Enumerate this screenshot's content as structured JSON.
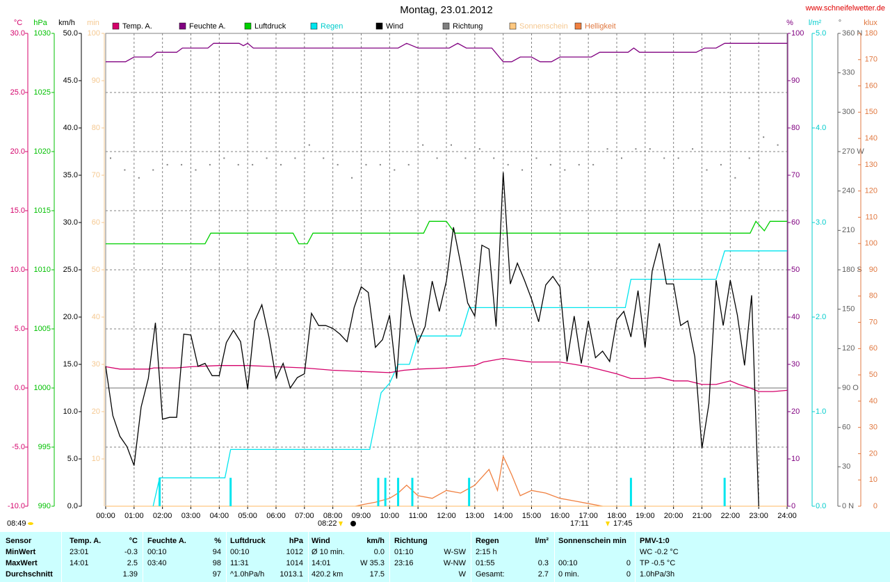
{
  "chart_data": {
    "type": "line",
    "title": "Montag, 23.01.2012",
    "subtitle": "www.schneifelwetter.de",
    "xlim": [
      0,
      24
    ],
    "xticks": [
      {
        "value": 0,
        "label": "00:00"
      },
      {
        "value": 1,
        "label": "01:00"
      },
      {
        "value": 2,
        "label": "02:00"
      },
      {
        "value": 3,
        "label": "03:00"
      },
      {
        "value": 4,
        "label": "04:00"
      },
      {
        "value": 5,
        "label": "05:00"
      },
      {
        "value": 6,
        "label": "06:00"
      },
      {
        "value": 7,
        "label": "07:00"
      },
      {
        "value": 8,
        "label": "08:00"
      },
      {
        "value": 9,
        "label": "09:00"
      },
      {
        "value": 10,
        "label": "10:00"
      },
      {
        "value": 11,
        "label": "11:00"
      },
      {
        "value": 12,
        "label": "12:00"
      },
      {
        "value": 13,
        "label": "13:00"
      },
      {
        "value": 14,
        "label": "14:00"
      },
      {
        "value": 15,
        "label": "15:00"
      },
      {
        "value": 16,
        "label": "16:00"
      },
      {
        "value": 17,
        "label": "17:00"
      },
      {
        "value": 18,
        "label": "18:00"
      },
      {
        "value": 19,
        "label": "19:00"
      },
      {
        "value": 20,
        "label": "20:00"
      },
      {
        "value": 21,
        "label": "21:00"
      },
      {
        "value": 22,
        "label": "22:00"
      },
      {
        "value": 23,
        "label": "23:00"
      },
      {
        "value": 24,
        "label": "24:00"
      }
    ],
    "grid": true,
    "zero_line": true,
    "axes": {
      "temp": {
        "label": "°C",
        "color": "#d4006a",
        "lim": [
          -10,
          30
        ],
        "ticks": [
          {
            "value": -10,
            "label": "-10.0"
          },
          {
            "value": -5,
            "label": "-5.0"
          },
          {
            "value": 0,
            "label": "0.0"
          },
          {
            "value": 5,
            "label": "5.0"
          },
          {
            "value": 10,
            "label": "10.0"
          },
          {
            "value": 15,
            "label": "15.0"
          },
          {
            "value": 20,
            "label": "20.0"
          },
          {
            "value": 25,
            "label": "25.0"
          },
          {
            "value": 30,
            "label": "30.0"
          }
        ]
      },
      "press": {
        "label": "hPa",
        "color": "#00c000",
        "lim": [
          990,
          1030
        ],
        "ticks": [
          990,
          995,
          1000,
          1005,
          1010,
          1015,
          1020,
          1025,
          1030
        ]
      },
      "wind": {
        "label": "km/h",
        "color": "#000000",
        "lim": [
          0,
          50
        ],
        "ticks": [
          {
            "value": 0,
            "label": "0.0"
          },
          {
            "value": 5,
            "label": "5.0"
          },
          {
            "value": 10,
            "label": "10.0"
          },
          {
            "value": 15,
            "label": "15.0"
          },
          {
            "value": 20,
            "label": "20.0"
          },
          {
            "value": 25,
            "label": "25.0"
          },
          {
            "value": 30,
            "label": "30.0"
          },
          {
            "value": 35,
            "label": "35.0"
          },
          {
            "value": 40,
            "label": "40.0"
          },
          {
            "value": 45,
            "label": "45.0"
          },
          {
            "value": 50,
            "label": "50.0"
          }
        ]
      },
      "min": {
        "label": "min",
        "color": "#f5c890",
        "lim": [
          0,
          100
        ],
        "ticks": [
          10,
          20,
          30,
          40,
          50,
          60,
          70,
          80,
          90,
          100
        ]
      },
      "hum": {
        "label": "%",
        "color": "#800080",
        "lim": [
          0,
          100
        ],
        "ticks": [
          0,
          10,
          20,
          30,
          40,
          50,
          60,
          70,
          80,
          90,
          100
        ]
      },
      "rain": {
        "label": "l/m²",
        "color": "#00cccc",
        "lim": [
          0,
          5
        ],
        "ticks": [
          {
            "value": 0,
            "label": "0.0"
          },
          {
            "value": 1,
            "label": "1.0"
          },
          {
            "value": 2,
            "label": "2.0"
          },
          {
            "value": 3,
            "label": "3.0"
          },
          {
            "value": 4,
            "label": "4.0"
          },
          {
            "value": 5,
            "label": "5.0"
          }
        ]
      },
      "dir": {
        "label": "°",
        "color": "#606060",
        "lim": [
          0,
          360
        ],
        "ticks": [
          {
            "value": 0,
            "label": "0 N"
          },
          30,
          60,
          {
            "value": 90,
            "label": "90 O"
          },
          120,
          150,
          {
            "value": 180,
            "label": "180 S"
          },
          210,
          240,
          {
            "value": 270,
            "label": "270 W"
          },
          300,
          330,
          {
            "value": 360,
            "label": "360 N"
          }
        ]
      },
      "klux": {
        "label": "klux",
        "color": "#e07840",
        "lim": [
          0,
          180
        ],
        "ticks": [
          0,
          10,
          20,
          30,
          40,
          50,
          60,
          70,
          80,
          90,
          100,
          110,
          120,
          130,
          140,
          150,
          160,
          170,
          180
        ]
      }
    },
    "series": [
      {
        "name": "Temp. A.",
        "color": "#d4006a",
        "axis": "temp",
        "x": [
          0,
          0.5,
          1.5,
          1.7,
          2.5,
          3,
          4,
          5,
          6,
          7,
          8,
          9,
          10,
          10.5,
          11,
          12,
          13,
          13.3,
          14,
          15,
          16,
          17,
          17.5,
          18,
          18.5,
          19,
          19.5,
          20,
          20.5,
          21,
          21.5,
          22,
          22.3,
          22.7,
          23,
          23.5,
          24
        ],
        "values": [
          1.8,
          1.6,
          1.6,
          1.7,
          1.7,
          1.8,
          1.9,
          1.9,
          1.8,
          1.7,
          1.5,
          1.4,
          1.3,
          1.5,
          1.6,
          1.7,
          1.9,
          2.2,
          2.5,
          2.2,
          2.2,
          1.8,
          1.5,
          1.2,
          0.8,
          0.8,
          0.9,
          0.6,
          0.6,
          0.3,
          0.3,
          0.6,
          0.3,
          0,
          -0.3,
          -0.3,
          -0.2
        ]
      },
      {
        "name": "Feuchte A.",
        "color": "#800080",
        "axis": "hum",
        "x": [
          0,
          0.7,
          1,
          1.6,
          1.8,
          2.5,
          2.7,
          3.6,
          3.8,
          4.7,
          4.85,
          5.0,
          5.2,
          10.3,
          10.6,
          11.0,
          12.1,
          12.4,
          12.7,
          13.6,
          14.0,
          14.3,
          14.6,
          15.0,
          15.3,
          15.7,
          16.0,
          17.1,
          17.4,
          18.4,
          18.6,
          18.8,
          20.8,
          21.1,
          21.5,
          21.8,
          24
        ],
        "values": [
          94,
          94,
          95,
          95,
          96,
          96,
          96.9,
          96.9,
          97.9,
          97.9,
          97.4,
          97.9,
          96.9,
          96.9,
          97.9,
          96.9,
          96.9,
          97.9,
          96.9,
          96.9,
          94,
          94,
          95,
          95,
          94,
          94,
          95,
          95,
          96,
          96,
          96.9,
          96,
          96,
          96.9,
          96.9,
          97.9,
          97.9
        ]
      },
      {
        "name": "Luftdruck",
        "color": "#00d000",
        "axis": "press",
        "x": [
          0,
          3.5,
          3.7,
          6.6,
          6.8,
          7.1,
          7.3,
          11.2,
          11.4,
          12.0,
          12.3,
          22.7,
          22.9,
          23.2,
          23.4,
          24
        ],
        "values": [
          1012.2,
          1012.2,
          1013.1,
          1013.1,
          1012.2,
          1012.2,
          1013.1,
          1013.1,
          1014.1,
          1014.1,
          1013.1,
          1013.1,
          1014.1,
          1013.3,
          1014.1,
          1014.1
        ]
      },
      {
        "name": "Regen",
        "color": "#00e5ee",
        "label_color": "#00cccc",
        "axis": "rain",
        "x": [
          1.67,
          1.9,
          4.2,
          4.4,
          9.3,
          9.7,
          10.0,
          10.3,
          10.7,
          11.0,
          12.5,
          12.8,
          18.3,
          18.5,
          21.5,
          21.8,
          24
        ],
        "values": [
          0,
          0.3,
          0.3,
          0.6,
          0.6,
          1.2,
          1.3,
          1.5,
          1.5,
          1.8,
          1.8,
          2.1,
          2.1,
          2.4,
          2.4,
          2.7,
          2.7
        ],
        "bars": {
          "x": [
            1.9,
            4.4,
            9.6,
            9.85,
            10.3,
            10.8,
            12.8,
            18.5,
            21.8
          ],
          "values": [
            0.3,
            0.3,
            0.3,
            0.3,
            0.3,
            0.3,
            0.3,
            0.3,
            0.3
          ]
        }
      },
      {
        "name": "Wind",
        "color": "#000000",
        "axis": "wind",
        "x": [
          0,
          0.25,
          0.5,
          0.75,
          1,
          1.25,
          1.5,
          1.75,
          2,
          2.25,
          2.5,
          2.75,
          3,
          3.25,
          3.5,
          3.75,
          4,
          4.25,
          4.5,
          4.75,
          5,
          5.25,
          5.5,
          5.75,
          6,
          6.25,
          6.5,
          6.75,
          7,
          7.25,
          7.5,
          7.75,
          8,
          8.25,
          8.5,
          8.75,
          9,
          9.25,
          9.5,
          9.75,
          10,
          10.25,
          10.5,
          10.75,
          11,
          11.25,
          11.5,
          11.75,
          12,
          12.25,
          12.5,
          12.75,
          13,
          13.25,
          13.5,
          13.75,
          14,
          14.25,
          14.5,
          14.75,
          15,
          15.25,
          15.5,
          15.75,
          16,
          16.25,
          16.5,
          16.75,
          17,
          17.25,
          17.5,
          17.75,
          18,
          18.25,
          18.5,
          18.75,
          19,
          19.25,
          19.5,
          19.75,
          20,
          20.25,
          20.5,
          20.75,
          21,
          21.25,
          21.5,
          21.75,
          22,
          22.25,
          22.5,
          22.75,
          23
        ],
        "values": [
          14.8,
          9.6,
          7.4,
          6.3,
          4.3,
          10.5,
          13.5,
          19.4,
          9.2,
          9.4,
          9.4,
          18.2,
          18.1,
          14.8,
          15.1,
          13.8,
          13.8,
          17.3,
          18.6,
          17.4,
          12.4,
          19.6,
          21.3,
          17.9,
          13.5,
          15.1,
          12.5,
          13.6,
          14.0,
          20.4,
          19.1,
          19.1,
          18.8,
          18.2,
          17.4,
          21.0,
          23.2,
          22.6,
          16.8,
          17.6,
          20.2,
          13.5,
          24.5,
          20.1,
          17.3,
          19.0,
          23.8,
          20.6,
          23.8,
          29.5,
          25.7,
          21.5,
          20.1,
          27.6,
          27.2,
          19.0,
          35.3,
          23.5,
          25.7,
          23.9,
          21.9,
          19.5,
          23.4,
          24.3,
          23.2,
          15.3,
          20.1,
          15.1,
          19.6,
          15.7,
          16.4,
          15.3,
          19.7,
          20.6,
          17.9,
          22.8,
          16.8,
          24.9,
          27.8,
          23.5,
          23.5,
          19.1,
          19.6,
          15.8,
          6.1,
          10.9,
          23.9,
          19.1,
          23.9,
          20.2,
          14.9,
          22.3,
          0.0
        ]
      },
      {
        "name": "Richtung",
        "color": "#808080",
        "axis": "dir",
        "dots": true,
        "x": [
          0,
          0.5,
          1,
          1.5,
          2,
          2.5,
          3,
          3.5,
          4,
          4.5,
          5,
          5.5,
          6,
          6.5,
          7,
          7.5,
          8,
          8.5,
          9,
          9.5,
          10,
          10.5,
          11,
          11.5,
          12,
          12.5,
          13,
          13.5,
          14,
          14.5,
          15,
          15.5,
          16,
          16.5,
          17,
          17.5,
          18,
          18.5,
          19,
          19.5,
          20,
          20.5,
          21,
          21.5,
          22,
          22.5,
          23,
          23.5
        ],
        "values": [
          265,
          256,
          250,
          256,
          260,
          260,
          256,
          260,
          265,
          260,
          260,
          265,
          260,
          265,
          275,
          265,
          260,
          250,
          260,
          260,
          256,
          260,
          275,
          265,
          275,
          265,
          272,
          265,
          260,
          256,
          265,
          260,
          256,
          260,
          260,
          272,
          265,
          272,
          272,
          265,
          265,
          272,
          256,
          260,
          250,
          265,
          281,
          275
        ]
      },
      {
        "name": "Sonnenschein",
        "color": "#ffc880",
        "label_color": "#f5c890",
        "axis": "min",
        "x": [
          0,
          24
        ],
        "values": [
          0,
          0
        ]
      },
      {
        "name": "Helligkeit",
        "color": "#f08040",
        "label_color": "#e07840",
        "axis": "klux",
        "x": [
          8.8,
          9.0,
          9.5,
          10,
          10.3,
          10.6,
          11,
          11.5,
          12,
          12.5,
          13,
          13.5,
          13.8,
          14,
          14.3,
          14.6,
          15,
          15.5,
          16,
          16.5,
          17,
          17.5
        ],
        "values": [
          0,
          0.5,
          1.5,
          3,
          5,
          8,
          4,
          3,
          6,
          5,
          8,
          14,
          6,
          19,
          12,
          4,
          6,
          5,
          3,
          2,
          1,
          0
        ]
      }
    ],
    "annotations": [
      "08:49",
      "08:22",
      "17:11",
      "17:45"
    ]
  },
  "table": {
    "header": [
      "Sensor",
      "Temp. A.",
      "°C",
      "Feuchte A.",
      "%",
      "Luftdruck",
      "hPa",
      "Wind",
      "km/h",
      "Richtung",
      null,
      "Regen",
      "l/m²",
      "Sonnenschein min",
      null,
      "PMV-1:0"
    ],
    "rows": [
      [
        "MinWert",
        "23:01",
        "-0.3",
        "00:10",
        "94",
        "00:10",
        "1012",
        "Ø 10 min.",
        "0.0",
        "01:10",
        "W-SW",
        "2:15 h",
        null,
        null,
        null,
        "WC -0.2 °C"
      ],
      [
        "MaxWert",
        "14:01",
        "2.5",
        "03:40",
        "98",
        "11:31",
        "1014",
        "14:01",
        "W 35.3",
        "23:16",
        "W-NW",
        "01:55",
        "0.3",
        "00:10",
        "0",
        "TP -0.5 °C"
      ],
      [
        "Durchschnitt",
        null,
        "1.39",
        null,
        "97",
        "^1.0hPa/h",
        "1013.1",
        "420.2 km",
        "17.5",
        null,
        "W",
        "Gesamt:",
        "2.7",
        "0 min.",
        "0",
        "1.0hPa/3h"
      ]
    ]
  }
}
